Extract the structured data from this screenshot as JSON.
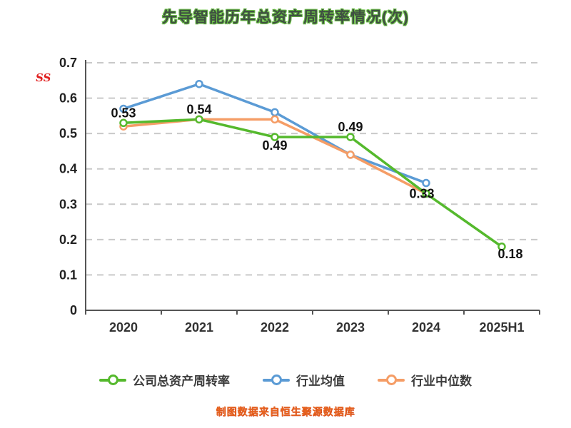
{
  "title": "先导智能历年总资产周转率情况(次)",
  "side_mark": "SS",
  "footer_note": "制图数据来自恒生聚源数据库",
  "chart_data": {
    "type": "line",
    "title": "先导智能历年总资产周转率情况(次)",
    "categories": [
      "2020",
      "2021",
      "2022",
      "2023",
      "2024",
      "2025H1"
    ],
    "ylim": [
      0,
      0.7
    ],
    "ytick_step": 0.1,
    "ytick_labels": [
      "0",
      "0.1",
      "0.2",
      "0.3",
      "0.4",
      "0.5",
      "0.6",
      "0.7"
    ],
    "grid": "horizontal-dashed",
    "legend_position": "bottom",
    "series": [
      {
        "name": "公司总资产周转率",
        "color": "#55b92d",
        "values": [
          0.53,
          0.54,
          0.49,
          0.49,
          0.33,
          0.18
        ],
        "point_labels": [
          "0.53",
          "0.54",
          "0.49",
          "0.49",
          "0.33",
          "0.18"
        ]
      },
      {
        "name": "行业均值",
        "color": "#5b9bd5",
        "values": [
          0.57,
          0.64,
          0.56,
          0.44,
          0.36,
          null
        ],
        "point_labels": []
      },
      {
        "name": "行业中位数",
        "color": "#f59d66",
        "values": [
          0.52,
          0.54,
          0.54,
          0.44,
          0.33,
          null
        ],
        "point_labels": []
      }
    ]
  }
}
